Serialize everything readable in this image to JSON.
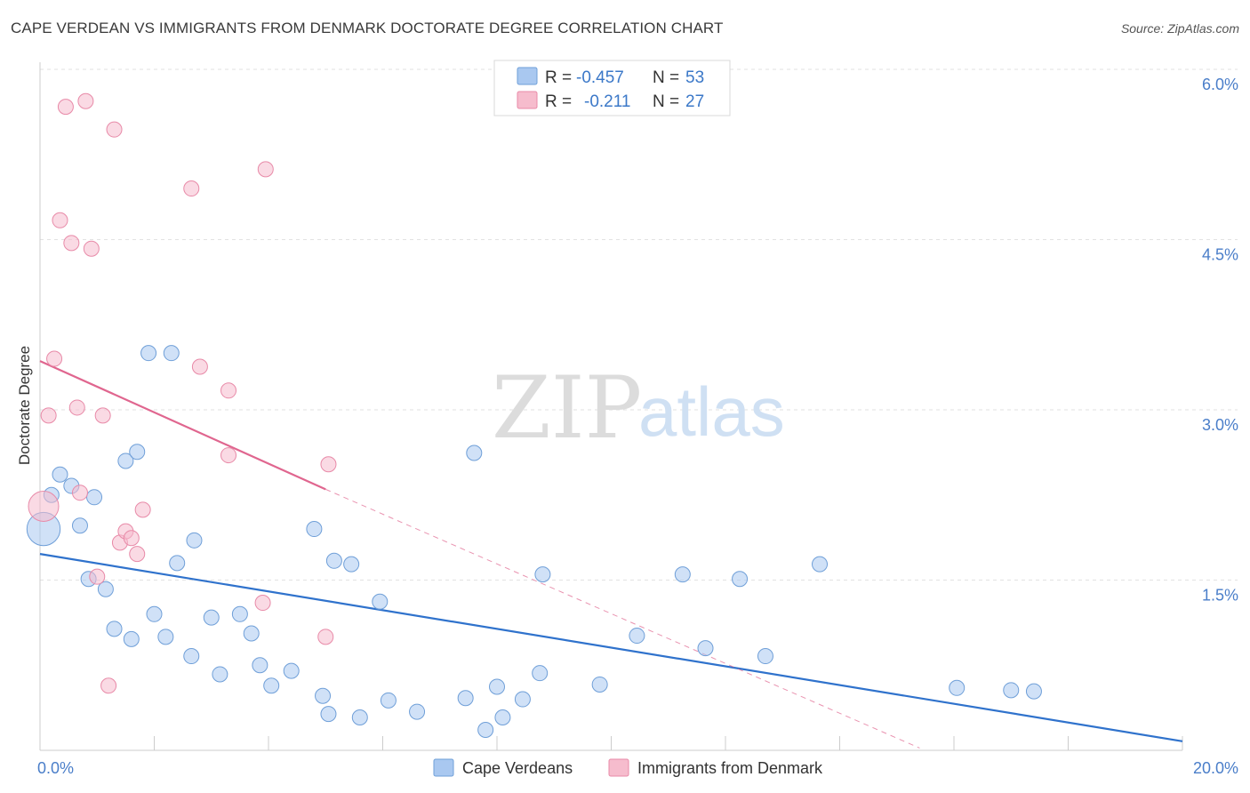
{
  "title": "CAPE VERDEAN VS IMMIGRANTS FROM DENMARK DOCTORATE DEGREE CORRELATION CHART",
  "source": "Source: ZipAtlas.com",
  "watermark": {
    "zip": "ZIP",
    "atlas": "atlas"
  },
  "legend": {
    "rows": [
      {
        "r_label": "R =",
        "r_value": "-0.457",
        "n_label": "N =",
        "n_value": "53",
        "color": "#a9c8f0"
      },
      {
        "r_label": "R =",
        "r_value": "-0.211",
        "n_label": "N =",
        "n_value": "27",
        "color": "#f6bccd"
      }
    ]
  },
  "bottom_legend": [
    "Cape Verdeans",
    "Immigrants from Denmark"
  ],
  "chart_data": {
    "type": "scatter",
    "xlabel": "",
    "ylabel": "Doctorate Degree",
    "xlim": [
      0,
      20
    ],
    "ylim": [
      0,
      6.2
    ],
    "x_tick_labels": [
      {
        "value": 0,
        "label": "0.0%"
      },
      {
        "value": 20,
        "label": "20.0%"
      }
    ],
    "y_tick_labels": [
      {
        "value": 1.5,
        "label": "1.5%"
      },
      {
        "value": 3.0,
        "label": "3.0%"
      },
      {
        "value": 4.5,
        "label": "4.5%"
      },
      {
        "value": 6.0,
        "label": "6.0%"
      }
    ],
    "grid": true,
    "series": [
      {
        "name": "Cape Verdeans",
        "color": "#a9c8f0",
        "stroke": "#6f9fd8",
        "trend_color": "#2f72cc",
        "trend": {
          "x0": 0,
          "y0": 1.73,
          "x1": 20,
          "y1": 0.08
        },
        "points": [
          [
            0.0,
            1.95,
            2.2
          ],
          [
            0.2,
            2.25,
            1
          ],
          [
            0.35,
            2.43,
            1
          ],
          [
            0.55,
            2.33,
            1
          ],
          [
            0.7,
            1.98,
            1
          ],
          [
            0.95,
            2.23,
            1
          ],
          [
            0.85,
            1.51,
            1
          ],
          [
            1.15,
            1.42,
            1
          ],
          [
            1.3,
            1.07,
            1
          ],
          [
            1.6,
            0.98,
            1
          ],
          [
            1.5,
            2.55,
            1
          ],
          [
            1.7,
            2.63,
            1
          ],
          [
            1.9,
            3.5,
            1
          ],
          [
            2.3,
            3.5,
            1
          ],
          [
            2.0,
            1.2,
            1
          ],
          [
            2.2,
            1.0,
            1
          ],
          [
            2.4,
            1.65,
            1
          ],
          [
            2.7,
            1.85,
            1
          ],
          [
            2.65,
            0.83,
            1
          ],
          [
            3.0,
            1.17,
            1
          ],
          [
            3.15,
            0.67,
            1
          ],
          [
            3.5,
            1.2,
            1
          ],
          [
            3.7,
            1.03,
            1
          ],
          [
            3.85,
            0.75,
            1
          ],
          [
            4.05,
            0.57,
            1
          ],
          [
            4.4,
            0.7,
            1
          ],
          [
            4.8,
            1.95,
            1
          ],
          [
            4.95,
            0.48,
            1
          ],
          [
            5.05,
            0.32,
            1
          ],
          [
            5.15,
            1.67,
            1
          ],
          [
            5.45,
            1.64,
            1
          ],
          [
            5.6,
            0.29,
            1
          ],
          [
            5.95,
            1.31,
            1
          ],
          [
            6.1,
            0.44,
            1
          ],
          [
            6.6,
            0.34,
            1
          ],
          [
            7.45,
            0.46,
            1
          ],
          [
            7.6,
            2.62,
            1
          ],
          [
            7.8,
            0.18,
            1
          ],
          [
            8.0,
            0.56,
            1
          ],
          [
            8.1,
            0.29,
            1
          ],
          [
            8.45,
            0.45,
            1
          ],
          [
            8.75,
            0.68,
            1
          ],
          [
            8.8,
            1.55,
            1
          ],
          [
            9.8,
            0.58,
            1
          ],
          [
            10.45,
            1.01,
            1
          ],
          [
            11.25,
            1.55,
            1
          ],
          [
            11.65,
            0.9,
            1
          ],
          [
            12.25,
            1.51,
            1
          ],
          [
            12.7,
            0.83,
            1
          ],
          [
            13.65,
            1.64,
            1
          ],
          [
            16.05,
            0.55,
            1
          ],
          [
            17.0,
            0.53,
            1
          ],
          [
            17.4,
            0.52,
            1
          ]
        ]
      },
      {
        "name": "Immigrants from Denmark",
        "color": "#f6bccd",
        "stroke": "#e88aa8",
        "trend_color": "#e0668f",
        "trend": {
          "x0": 0,
          "y0": 3.43,
          "x1": 5.0,
          "y1": 2.3
        },
        "trend_dashed": {
          "x0": 5.0,
          "y0": 2.3,
          "x1": 15.4,
          "y1": 0.02
        },
        "points": [
          [
            0.0,
            2.15,
            2.0
          ],
          [
            0.15,
            2.95,
            1
          ],
          [
            0.25,
            3.45,
            1
          ],
          [
            0.35,
            4.67,
            1
          ],
          [
            0.45,
            5.67,
            1
          ],
          [
            0.55,
            4.47,
            1
          ],
          [
            0.65,
            3.02,
            1
          ],
          [
            0.7,
            2.27,
            1
          ],
          [
            0.8,
            5.72,
            1
          ],
          [
            0.9,
            4.42,
            1
          ],
          [
            1.0,
            1.53,
            1
          ],
          [
            1.1,
            2.95,
            1
          ],
          [
            1.2,
            0.57,
            1
          ],
          [
            1.3,
            5.47,
            1
          ],
          [
            1.4,
            1.83,
            1
          ],
          [
            1.5,
            1.93,
            1
          ],
          [
            1.6,
            1.87,
            1
          ],
          [
            1.7,
            1.73,
            1
          ],
          [
            1.8,
            2.12,
            1
          ],
          [
            2.8,
            3.38,
            1
          ],
          [
            2.65,
            4.95,
            1
          ],
          [
            3.3,
            2.6,
            1
          ],
          [
            3.3,
            3.17,
            1
          ],
          [
            3.9,
            1.3,
            1
          ],
          [
            3.95,
            5.12,
            1
          ],
          [
            5.0,
            1.0,
            1
          ],
          [
            5.05,
            2.52,
            1
          ]
        ]
      }
    ]
  }
}
